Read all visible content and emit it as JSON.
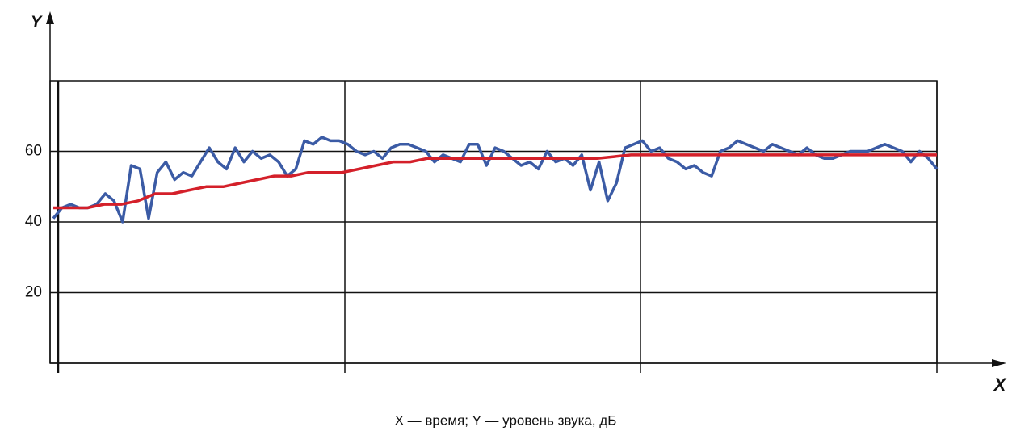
{
  "chart_data": {
    "type": "line",
    "y_label": "Y",
    "x_label": "X",
    "caption": "X — время; Y — уровень звука, дБ",
    "ylim": [
      0,
      80
    ],
    "yticks": [
      20,
      40,
      60
    ],
    "grid": true,
    "series": [
      {
        "color": "#3b5ba5",
        "values": [
          41,
          44,
          45,
          44,
          44,
          45,
          48,
          46,
          40,
          56,
          55,
          41,
          54,
          57,
          52,
          54,
          53,
          57,
          61,
          57,
          55,
          61,
          57,
          60,
          58,
          59,
          57,
          53,
          55,
          63,
          62,
          64,
          63,
          63,
          62,
          60,
          59,
          60,
          58,
          61,
          62,
          62,
          61,
          60,
          57,
          59,
          58,
          57,
          62,
          62,
          56,
          61,
          60,
          58,
          56,
          57,
          55,
          60,
          57,
          58,
          56,
          59,
          49,
          57,
          46,
          51,
          61,
          62,
          63,
          60,
          61,
          58,
          57,
          55,
          56,
          54,
          53,
          60,
          61,
          63,
          62,
          61,
          60,
          62,
          61,
          60,
          59,
          61,
          59,
          58,
          58,
          59,
          60,
          60,
          60,
          61,
          62,
          61,
          60,
          57,
          60,
          58,
          55
        ]
      },
      {
        "color": "#d4202a",
        "values": [
          44,
          44,
          44,
          45,
          45,
          46,
          48,
          48,
          49,
          50,
          50,
          51,
          52,
          53,
          53,
          54,
          54,
          54,
          55,
          56,
          57,
          57,
          58,
          58,
          58,
          58,
          58,
          58,
          58,
          58,
          58,
          58,
          58,
          58.5,
          59,
          59,
          59,
          59,
          59,
          59,
          59,
          59,
          59,
          59,
          59,
          59,
          59,
          59,
          59,
          59,
          59,
          59,
          59
        ]
      }
    ]
  }
}
